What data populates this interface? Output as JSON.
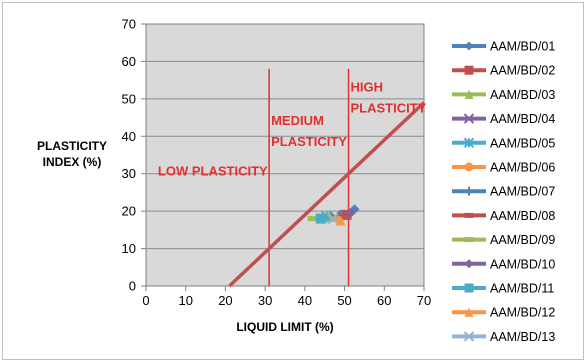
{
  "chart_data": {
    "type": "scatter",
    "title": "",
    "xlabel": "LIQUID LIMIT (%)",
    "ylabel_lines": [
      "PLASTICITY",
      "INDEX (%)"
    ],
    "xlim": [
      0,
      70
    ],
    "ylim": [
      0,
      70
    ],
    "x_ticks": [
      "0",
      "10",
      "20",
      "30",
      "40",
      "50",
      "60",
      "70"
    ],
    "y_ticks": [
      "0",
      "10",
      "20",
      "30",
      "40",
      "50",
      "60",
      "70"
    ],
    "grid": "horizontal",
    "plot_background": "#d9d9d9",
    "legend_position": "right",
    "a_line": {
      "color": "#c0504d",
      "x": [
        21,
        70
      ],
      "y": [
        0,
        49
      ]
    },
    "zone_dividers": [
      {
        "x": 31,
        "color": "#e03030"
      },
      {
        "x": 51,
        "color": "#e03030"
      }
    ],
    "zones": [
      {
        "lines": [
          "LOW PLASTICITY"
        ],
        "x": 3,
        "y": 29.5
      },
      {
        "lines": [
          "MEDIUM",
          "PLASTICITY"
        ],
        "x": 31.5,
        "y": 43
      },
      {
        "lines": [
          "HIGH",
          "PLASTICITY"
        ],
        "x": 51.5,
        "y": 52
      }
    ],
    "series": [
      {
        "name": "AAM/BD/01",
        "x": 52.5,
        "y": 20.5,
        "color": "#4f81bd",
        "marker": "diamond"
      },
      {
        "name": "AAM/BD/02",
        "x": 50.5,
        "y": 19,
        "color": "#c0504d",
        "marker": "square"
      },
      {
        "name": "AAM/BD/03",
        "x": 46.5,
        "y": 18.5,
        "color": "#9bbb59",
        "marker": "triangle"
      },
      {
        "name": "AAM/BD/04",
        "x": 47.5,
        "y": 18.5,
        "color": "#8064a2",
        "marker": "x"
      },
      {
        "name": "AAM/BD/05",
        "x": 45.5,
        "y": 18.5,
        "color": "#4bacc6",
        "marker": "star"
      },
      {
        "name": "AAM/BD/06",
        "x": 48.5,
        "y": 18,
        "color": "#f79646",
        "marker": "circle"
      },
      {
        "name": "AAM/BD/07",
        "x": 49,
        "y": 19,
        "color": "#4f81bd",
        "marker": "plus"
      },
      {
        "name": "AAM/BD/08",
        "x": 50,
        "y": 18.5,
        "color": "#c0504d",
        "marker": "bar"
      },
      {
        "name": "AAM/BD/09",
        "x": 42,
        "y": 18,
        "color": "#9bbb59",
        "marker": "bar"
      },
      {
        "name": "AAM/BD/10",
        "x": 51.5,
        "y": 19.5,
        "color": "#8064a2",
        "marker": "diamond"
      },
      {
        "name": "AAM/BD/11",
        "x": 44,
        "y": 18,
        "color": "#4bacc6",
        "marker": "square"
      },
      {
        "name": "AAM/BD/12",
        "x": 49,
        "y": 17.5,
        "color": "#f79646",
        "marker": "triangle"
      },
      {
        "name": "AAM/BD/13",
        "x": 47,
        "y": 18,
        "color": "#95b3d7",
        "marker": "x"
      }
    ]
  }
}
